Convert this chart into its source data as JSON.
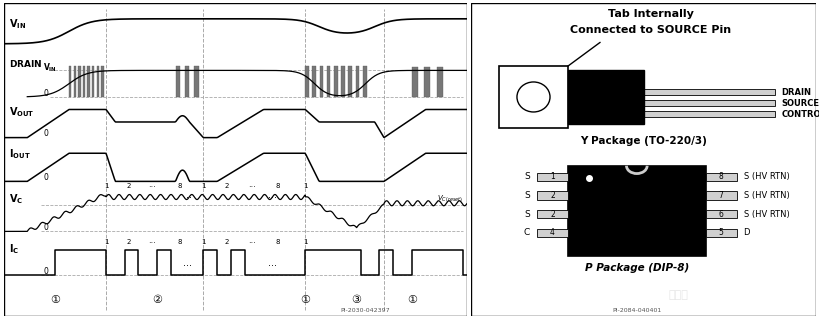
{
  "bg_color": "#ffffff",
  "footnote_left": "PI-2030-042397",
  "footnote_right": "PI-2084-040401",
  "circle_labels": [
    "①",
    "②",
    "①",
    "③",
    "①"
  ]
}
